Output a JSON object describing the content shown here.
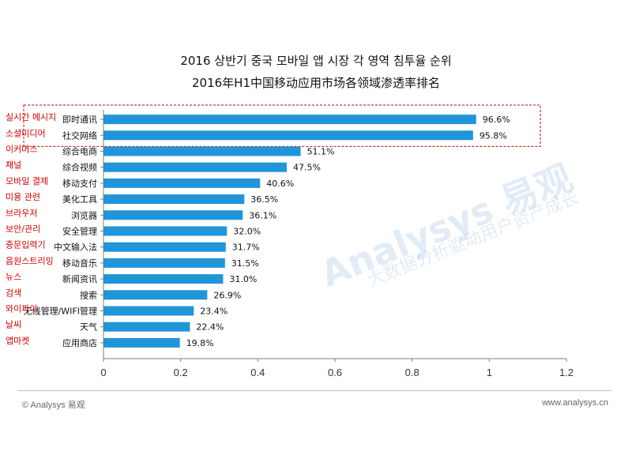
{
  "titles": {
    "korean": "2016 상반기 중국 모바일 앱 시장 각 영역 침투율 순위",
    "chinese": "2016年H1中国移动应用市场各领域渗透率排名"
  },
  "watermark": {
    "main": "Analysys 易观",
    "sub": "大数据分析驱动用户资产成长"
  },
  "footer": {
    "left": "© Analysys 易观",
    "right": "www.analysys.cn"
  },
  "colors": {
    "bar": "#1f96d9",
    "korean_label": "#d40000",
    "highlight_box": "#d40000",
    "axis": "#7f7f7f"
  },
  "chart_data": {
    "type": "bar",
    "orientation": "horizontal",
    "title": "2016年H1中国移动应用市场各领域渗透率排名",
    "categories": [
      "即时通讯",
      "社交网络",
      "综合电商",
      "综合视频",
      "移动支付",
      "美化工具",
      "浏览器",
      "安全管理",
      "中文输入法",
      "移动音乐",
      "新闻资讯",
      "搜索",
      "无线管理/WIFI管理",
      "天气",
      "应用商店"
    ],
    "korean_labels": [
      "실시간 메시지",
      "소셜미디어",
      "이커머스",
      "채널",
      "모바일 결제",
      "미용 관련",
      "브라우저",
      "보안/관리",
      "중문입력기",
      "음원스트리밍",
      "뉴스",
      "검색",
      "와이파이",
      "날씨",
      "앱마켓"
    ],
    "values": [
      0.966,
      0.958,
      0.511,
      0.475,
      0.406,
      0.365,
      0.361,
      0.32,
      0.317,
      0.315,
      0.31,
      0.269,
      0.234,
      0.224,
      0.198
    ],
    "value_labels": [
      "96.6%",
      "95.8%",
      "51.1%",
      "47.5%",
      "40.6%",
      "36.5%",
      "36.1%",
      "32.0%",
      "31.7%",
      "31.5%",
      "31.0%",
      "26.9%",
      "23.4%",
      "22.4%",
      "19.8%"
    ],
    "xlim": [
      0,
      1.2
    ],
    "xticks": [
      "0",
      "0.2",
      "0.4",
      "0.6",
      "0.8",
      "1",
      "1.2"
    ],
    "grid": false,
    "legend": "none",
    "highlight": "first two categories enclosed by dashed red box"
  }
}
